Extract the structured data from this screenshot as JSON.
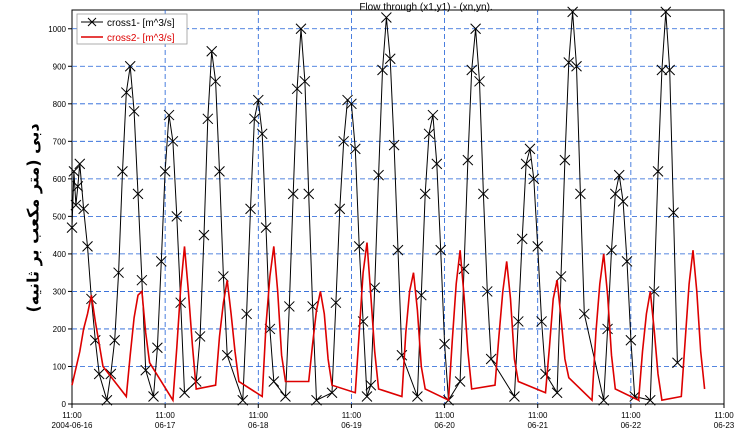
{
  "chart_data": {
    "type": "line",
    "title": "Flow through (x1,y1) - (xn,yn).",
    "xlabel": "",
    "ylabel": "دبی (متر مکعب بر ثانیه)",
    "ylim": [
      0,
      1050
    ],
    "yticks": [
      0,
      100,
      200,
      300,
      400,
      500,
      600,
      700,
      800,
      900,
      1000
    ],
    "xlim": [
      "2004-06-16 11:00",
      "2004-06-23 11:00"
    ],
    "xticks": [
      {
        "time": "11:00",
        "date": "2004-06-16"
      },
      {
        "time": "11:00",
        "date": "06-17"
      },
      {
        "time": "11:00",
        "date": "06-18"
      },
      {
        "time": "11:00",
        "date": "06-19"
      },
      {
        "time": "11:00",
        "date": "06-20"
      },
      {
        "time": "11:00",
        "date": "06-21"
      },
      {
        "time": "11:00",
        "date": "06-22"
      },
      {
        "time": "11:00",
        "date": "06-23"
      }
    ],
    "grid": true,
    "legend_position": "top-left",
    "series": [
      {
        "name": "cross1- [m^3/s]",
        "color": "#000000",
        "marker": "x",
        "points": [
          [
            "2004-06-16 11:00",
            470
          ],
          [
            "2004-06-16 11:30",
            620
          ],
          [
            "2004-06-16 12:00",
            530
          ],
          [
            "2004-06-16 12:30",
            580
          ],
          [
            "2004-06-16 13:00",
            640
          ],
          [
            "2004-06-16 14:00",
            520
          ],
          [
            "2004-06-16 15:00",
            420
          ],
          [
            "2004-06-16 16:00",
            280
          ],
          [
            "2004-06-16 17:00",
            170
          ],
          [
            "2004-06-16 18:00",
            80
          ],
          [
            "2004-06-16 20:00",
            10
          ],
          [
            "2004-06-16 21:00",
            80
          ],
          [
            "2004-06-16 22:00",
            170
          ],
          [
            "2004-06-16 23:00",
            350
          ],
          [
            "2004-06-17 00:00",
            620
          ],
          [
            "2004-06-17 01:00",
            830
          ],
          [
            "2004-06-17 02:00",
            900
          ],
          [
            "2004-06-17 03:00",
            780
          ],
          [
            "2004-06-17 04:00",
            560
          ],
          [
            "2004-06-17 05:00",
            330
          ],
          [
            "2004-06-17 06:00",
            90
          ],
          [
            "2004-06-17 08:00",
            20
          ],
          [
            "2004-06-17 09:00",
            150
          ],
          [
            "2004-06-17 10:00",
            380
          ],
          [
            "2004-06-17 11:00",
            620
          ],
          [
            "2004-06-17 12:00",
            770
          ],
          [
            "2004-06-17 13:00",
            700
          ],
          [
            "2004-06-17 14:00",
            500
          ],
          [
            "2004-06-17 15:00",
            270
          ],
          [
            "2004-06-17 16:00",
            30
          ],
          [
            "2004-06-17 19:00",
            60
          ],
          [
            "2004-06-17 20:00",
            180
          ],
          [
            "2004-06-17 21:00",
            450
          ],
          [
            "2004-06-17 22:00",
            760
          ],
          [
            "2004-06-17 23:00",
            940
          ],
          [
            "2004-06-18 00:00",
            860
          ],
          [
            "2004-06-18 01:00",
            620
          ],
          [
            "2004-06-18 02:00",
            340
          ],
          [
            "2004-06-18 03:00",
            130
          ],
          [
            "2004-06-18 07:00",
            10
          ],
          [
            "2004-06-18 08:00",
            240
          ],
          [
            "2004-06-18 09:00",
            520
          ],
          [
            "2004-06-18 10:00",
            760
          ],
          [
            "2004-06-18 11:00",
            810
          ],
          [
            "2004-06-18 12:00",
            720
          ],
          [
            "2004-06-18 13:00",
            470
          ],
          [
            "2004-06-18 14:00",
            200
          ],
          [
            "2004-06-18 15:00",
            60
          ],
          [
            "2004-06-18 18:00",
            20
          ],
          [
            "2004-06-18 19:00",
            260
          ],
          [
            "2004-06-18 20:00",
            560
          ],
          [
            "2004-06-18 21:00",
            840
          ],
          [
            "2004-06-18 22:00",
            1000
          ],
          [
            "2004-06-18 23:00",
            860
          ],
          [
            "2004-06-19 00:00",
            560
          ],
          [
            "2004-06-19 01:00",
            260
          ],
          [
            "2004-06-19 02:00",
            10
          ],
          [
            "2004-06-19 06:00",
            30
          ],
          [
            "2004-06-19 07:00",
            270
          ],
          [
            "2004-06-19 08:00",
            520
          ],
          [
            "2004-06-19 09:00",
            700
          ],
          [
            "2004-06-19 10:00",
            810
          ],
          [
            "2004-06-19 11:00",
            800
          ],
          [
            "2004-06-19 12:00",
            680
          ],
          [
            "2004-06-19 13:00",
            420
          ],
          [
            "2004-06-19 14:00",
            220
          ],
          [
            "2004-06-19 15:00",
            20
          ],
          [
            "2004-06-19 16:00",
            50
          ],
          [
            "2004-06-19 17:00",
            310
          ],
          [
            "2004-06-19 18:00",
            610
          ],
          [
            "2004-06-19 19:00",
            890
          ],
          [
            "2004-06-19 20:00",
            1030
          ],
          [
            "2004-06-19 21:00",
            920
          ],
          [
            "2004-06-19 22:00",
            690
          ],
          [
            "2004-06-19 23:00",
            410
          ],
          [
            "2004-06-20 00:00",
            130
          ],
          [
            "2004-06-20 04:00",
            20
          ],
          [
            "2004-06-20 05:00",
            290
          ],
          [
            "2004-06-20 06:00",
            560
          ],
          [
            "2004-06-20 07:00",
            720
          ],
          [
            "2004-06-20 08:00",
            770
          ],
          [
            "2004-06-20 09:00",
            640
          ],
          [
            "2004-06-20 10:00",
            410
          ],
          [
            "2004-06-20 11:00",
            160
          ],
          [
            "2004-06-20 12:00",
            10
          ],
          [
            "2004-06-20 15:00",
            60
          ],
          [
            "2004-06-20 16:00",
            360
          ],
          [
            "2004-06-20 17:00",
            650
          ],
          [
            "2004-06-20 18:00",
            890
          ],
          [
            "2004-06-20 19:00",
            1000
          ],
          [
            "2004-06-20 20:00",
            860
          ],
          [
            "2004-06-20 21:00",
            560
          ],
          [
            "2004-06-20 22:00",
            300
          ],
          [
            "2004-06-20 23:00",
            120
          ],
          [
            "2004-06-21 05:00",
            20
          ],
          [
            "2004-06-21 06:00",
            220
          ],
          [
            "2004-06-21 07:00",
            440
          ],
          [
            "2004-06-21 08:00",
            640
          ],
          [
            "2004-06-21 09:00",
            680
          ],
          [
            "2004-06-21 10:00",
            600
          ],
          [
            "2004-06-21 11:00",
            420
          ],
          [
            "2004-06-21 12:00",
            220
          ],
          [
            "2004-06-21 13:00",
            80
          ],
          [
            "2004-06-21 16:00",
            30
          ],
          [
            "2004-06-21 17:00",
            340
          ],
          [
            "2004-06-21 18:00",
            650
          ],
          [
            "2004-06-21 19:00",
            910
          ],
          [
            "2004-06-21 20:00",
            1045
          ],
          [
            "2004-06-21 21:00",
            900
          ],
          [
            "2004-06-21 22:00",
            560
          ],
          [
            "2004-06-21 23:00",
            240
          ],
          [
            "2004-06-22 04:00",
            10
          ],
          [
            "2004-06-22 05:00",
            200
          ],
          [
            "2004-06-22 06:00",
            410
          ],
          [
            "2004-06-22 07:00",
            560
          ],
          [
            "2004-06-22 08:00",
            610
          ],
          [
            "2004-06-22 09:00",
            540
          ],
          [
            "2004-06-22 10:00",
            380
          ],
          [
            "2004-06-22 11:00",
            170
          ],
          [
            "2004-06-22 12:00",
            20
          ],
          [
            "2004-06-22 16:00",
            10
          ],
          [
            "2004-06-22 17:00",
            300
          ],
          [
            "2004-06-22 18:00",
            620
          ],
          [
            "2004-06-22 19:00",
            890
          ],
          [
            "2004-06-22 20:00",
            1045
          ],
          [
            "2004-06-22 21:00",
            890
          ],
          [
            "2004-06-22 22:00",
            510
          ],
          [
            "2004-06-22 23:00",
            110
          ]
        ]
      },
      {
        "name": "cross2- [m^3/s]",
        "color": "#dd0000",
        "points": [
          [
            "2004-06-16 11:00",
            50
          ],
          [
            "2004-06-16 13:00",
            140
          ],
          [
            "2004-06-16 14:00",
            200
          ],
          [
            "2004-06-16 15:00",
            240
          ],
          [
            "2004-06-16 16:00",
            290
          ],
          [
            "2004-06-16 17:00",
            220
          ],
          [
            "2004-06-16 18:00",
            160
          ],
          [
            "2004-06-16 19:00",
            100
          ],
          [
            "2004-06-17 01:00",
            20
          ],
          [
            "2004-06-17 02:00",
            130
          ],
          [
            "2004-06-17 03:00",
            230
          ],
          [
            "2004-06-17 04:00",
            290
          ],
          [
            "2004-06-17 05:00",
            300
          ],
          [
            "2004-06-17 06:00",
            190
          ],
          [
            "2004-06-17 07:00",
            110
          ],
          [
            "2004-06-17 13:00",
            10
          ],
          [
            "2004-06-17 14:00",
            150
          ],
          [
            "2004-06-17 15:00",
            310
          ],
          [
            "2004-06-17 16:00",
            420
          ],
          [
            "2004-06-17 17:00",
            300
          ],
          [
            "2004-06-17 18:00",
            160
          ],
          [
            "2004-06-17 19:00",
            40
          ],
          [
            "2004-06-18 00:00",
            50
          ],
          [
            "2004-06-18 01:00",
            180
          ],
          [
            "2004-06-18 02:00",
            270
          ],
          [
            "2004-06-18 03:00",
            330
          ],
          [
            "2004-06-18 04:00",
            240
          ],
          [
            "2004-06-18 05:00",
            140
          ],
          [
            "2004-06-18 06:00",
            60
          ],
          [
            "2004-06-18 12:00",
            20
          ],
          [
            "2004-06-18 13:00",
            210
          ],
          [
            "2004-06-18 14:00",
            340
          ],
          [
            "2004-06-18 15:00",
            420
          ],
          [
            "2004-06-18 16:00",
            300
          ],
          [
            "2004-06-18 17:00",
            130
          ],
          [
            "2004-06-18 18:00",
            60
          ],
          [
            "2004-06-19 00:00",
            60
          ],
          [
            "2004-06-19 01:00",
            160
          ],
          [
            "2004-06-19 02:00",
            250
          ],
          [
            "2004-06-19 03:00",
            300
          ],
          [
            "2004-06-19 04:00",
            240
          ],
          [
            "2004-06-19 05:00",
            120
          ],
          [
            "2004-06-19 06:00",
            50
          ],
          [
            "2004-06-19 12:00",
            30
          ],
          [
            "2004-06-19 13:00",
            190
          ],
          [
            "2004-06-19 14:00",
            350
          ],
          [
            "2004-06-19 15:00",
            430
          ],
          [
            "2004-06-19 16:00",
            290
          ],
          [
            "2004-06-19 17:00",
            140
          ],
          [
            "2004-06-19 18:00",
            40
          ],
          [
            "2004-06-20 00:00",
            20
          ],
          [
            "2004-06-20 01:00",
            190
          ],
          [
            "2004-06-20 02:00",
            300
          ],
          [
            "2004-06-20 03:00",
            350
          ],
          [
            "2004-06-20 04:00",
            250
          ],
          [
            "2004-06-20 05:00",
            100
          ],
          [
            "2004-06-20 06:00",
            40
          ],
          [
            "2004-06-20 12:00",
            10
          ],
          [
            "2004-06-20 13:00",
            170
          ],
          [
            "2004-06-20 14:00",
            320
          ],
          [
            "2004-06-20 15:00",
            410
          ],
          [
            "2004-06-20 16:00",
            290
          ],
          [
            "2004-06-20 17:00",
            140
          ],
          [
            "2004-06-20 18:00",
            40
          ],
          [
            "2004-06-21 00:00",
            50
          ],
          [
            "2004-06-21 01:00",
            180
          ],
          [
            "2004-06-21 02:00",
            300
          ],
          [
            "2004-06-21 03:00",
            380
          ],
          [
            "2004-06-21 04:00",
            280
          ],
          [
            "2004-06-21 05:00",
            120
          ],
          [
            "2004-06-21 06:00",
            60
          ],
          [
            "2004-06-21 13:00",
            30
          ],
          [
            "2004-06-21 14:00",
            150
          ],
          [
            "2004-06-21 15:00",
            280
          ],
          [
            "2004-06-21 16:00",
            330
          ],
          [
            "2004-06-21 17:00",
            230
          ],
          [
            "2004-06-21 18:00",
            120
          ],
          [
            "2004-06-21 19:00",
            70
          ],
          [
            "2004-06-22 01:00",
            10
          ],
          [
            "2004-06-22 02:00",
            190
          ],
          [
            "2004-06-22 03:00",
            320
          ],
          [
            "2004-06-22 04:00",
            400
          ],
          [
            "2004-06-22 05:00",
            290
          ],
          [
            "2004-06-22 06:00",
            130
          ],
          [
            "2004-06-22 07:00",
            40
          ],
          [
            "2004-06-22 13:00",
            10
          ],
          [
            "2004-06-22 14:00",
            140
          ],
          [
            "2004-06-22 15:00",
            240
          ],
          [
            "2004-06-22 16:00",
            300
          ],
          [
            "2004-06-22 17:00",
            200
          ],
          [
            "2004-06-22 18:00",
            80
          ],
          [
            "2004-06-22 19:00",
            10
          ],
          [
            "2004-06-23 00:00",
            20
          ],
          [
            "2004-06-23 01:00",
            170
          ],
          [
            "2004-06-23 02:00",
            320
          ],
          [
            "2004-06-23 03:00",
            410
          ],
          [
            "2004-06-23 04:00",
            300
          ],
          [
            "2004-06-23 05:00",
            140
          ],
          [
            "2004-06-23 06:00",
            40
          ]
        ]
      }
    ]
  }
}
